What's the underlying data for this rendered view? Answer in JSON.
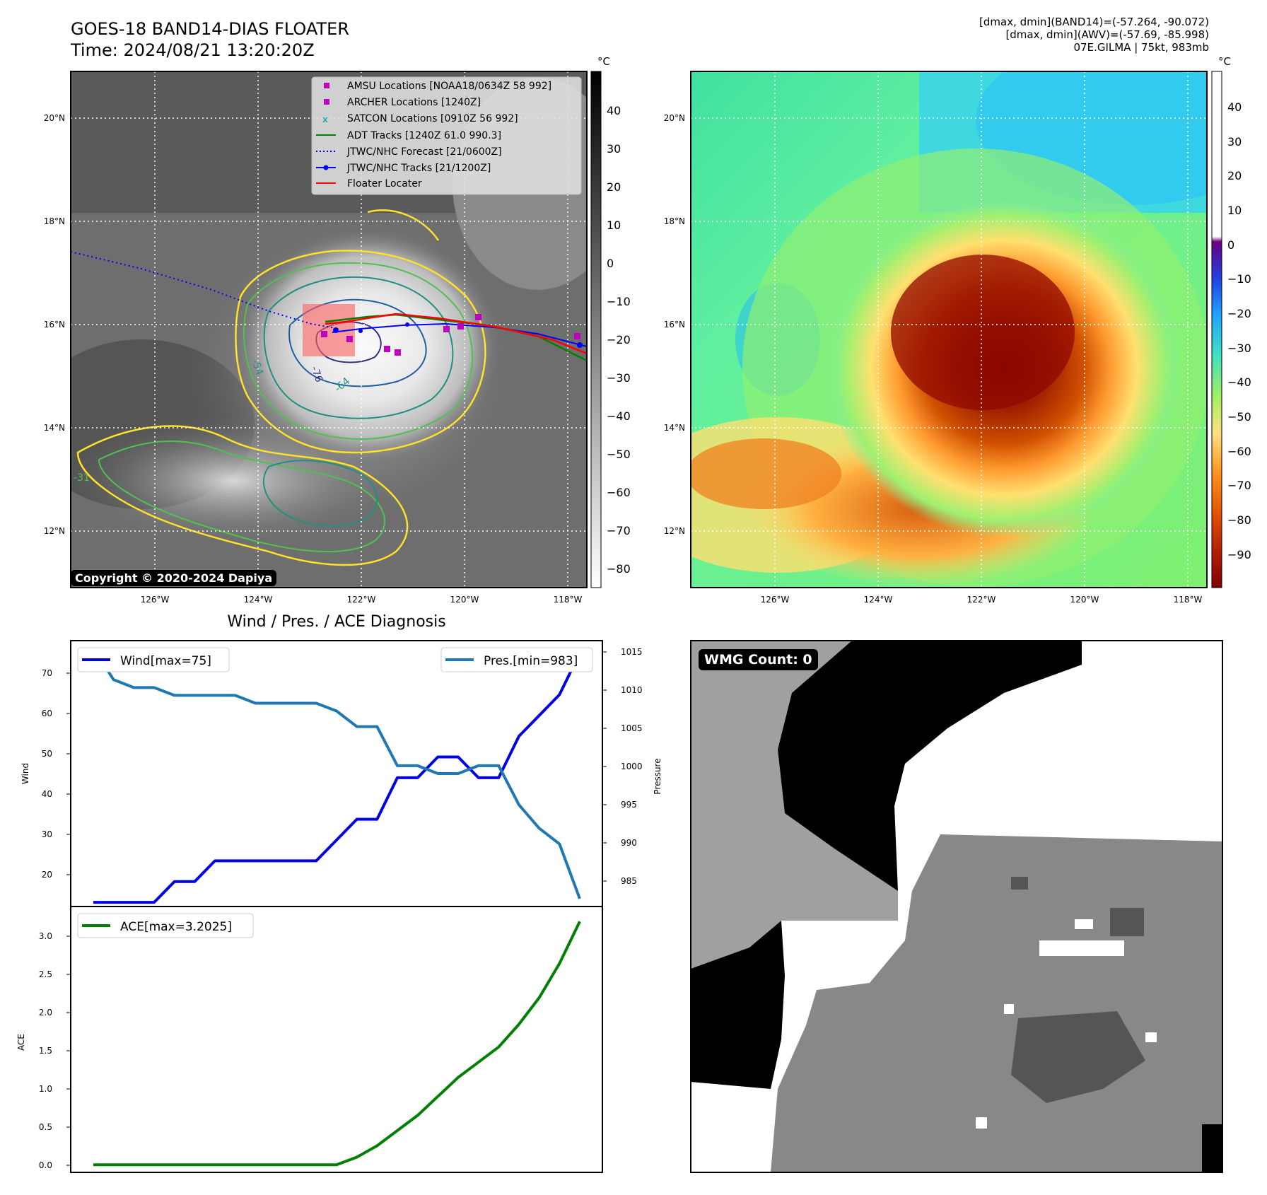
{
  "header": {
    "title_line1": "GOES-18 BAND14-DIAS FLOATER",
    "title_line2": "Time: 2024/08/21 13:20:20Z",
    "meta_line1": "[dmax, dmin](BAND14)=(-57.264, -90.072)",
    "meta_line2": "[dmax, dmin](AWV)=(-57.69, -85.998)",
    "meta_line3": "07E.GILMA | 75kt, 983mb"
  },
  "maps": {
    "lon_ticks": [
      "126°W",
      "124°W",
      "122°W",
      "120°W",
      "118°W"
    ],
    "lat_ticks": [
      "20°N",
      "18°N",
      "16°N",
      "14°N",
      "12°N"
    ],
    "copyright": "Copyright © 2020-2024 Dapiya",
    "contour_labels": [
      "-76",
      "-54",
      "-64",
      "-31"
    ]
  },
  "legend": {
    "items": [
      {
        "label": "AMSU Locations [NOAA18/0634Z 58 992]",
        "color": "#c000c0",
        "marker": "square"
      },
      {
        "label": "ARCHER Locations [1240Z]",
        "color": "#c000c0",
        "marker": "square"
      },
      {
        "label": "SATCON Locations [0910Z 56 992]",
        "color": "#20b0b0",
        "marker": "x"
      },
      {
        "label": "ADT Tracks [1240Z 61.0 990.3]",
        "color": "#008000",
        "marker": "line"
      },
      {
        "label": "JTWC/NHC Forecast [21/0600Z]",
        "color": "#0000ff",
        "marker": "dotted"
      },
      {
        "label": "JTWC/NHC Tracks [21/1200Z]",
        "color": "#0000ff",
        "marker": "line-dot"
      },
      {
        "label": "Floater Locater",
        "color": "#ff0000",
        "marker": "line"
      }
    ]
  },
  "colorbars": {
    "unit": "°C",
    "gray_ticks": [
      "40",
      "30",
      "20",
      "10",
      "0",
      "−10",
      "−20",
      "−30",
      "−40",
      "−50",
      "−60",
      "−70",
      "−80"
    ],
    "color_ticks": [
      "40",
      "30",
      "20",
      "10",
      "0",
      "−10",
      "−20",
      "−30",
      "−40",
      "−50",
      "−60",
      "−70",
      "−80",
      "−90"
    ]
  },
  "diagnosis": {
    "title": "Wind / Pres. / ACE Diagnosis",
    "wind_ylabel": "Wind",
    "pres_ylabel": "Pressure",
    "ace_ylabel": "ACE",
    "wind_legend": "Wind[max=75]",
    "pres_legend": "Pres.[min=983]",
    "ace_legend": "ACE[max=3.2025]",
    "wind_ticks": [
      "70",
      "60",
      "50",
      "40",
      "30",
      "20"
    ],
    "pres_ticks": [
      "1015",
      "1010",
      "1005",
      "1000",
      "995",
      "990",
      "985"
    ],
    "ace_ticks": [
      "3.0",
      "2.5",
      "2.0",
      "1.5",
      "1.0",
      "0.5",
      "0.0"
    ],
    "wind_color": "#0000e0",
    "pres_color": "#1f77b4",
    "ace_color": "#008000"
  },
  "chart_data": [
    {
      "type": "line",
      "ylim": [
        14,
        78
      ],
      "series": [
        {
          "name": "Wind[max=75]",
          "values": [
            15,
            15,
            15,
            15,
            20,
            20,
            25,
            25,
            25,
            25,
            25,
            25,
            30,
            35,
            35,
            45,
            45,
            50,
            50,
            45,
            45,
            55,
            60,
            65,
            75
          ]
        }
      ]
    },
    {
      "type": "line",
      "ylim": [
        982,
        1016
      ],
      "series": [
        {
          "name": "Pres.[min=983]",
          "values": [
            1015,
            1011,
            1010,
            1010,
            1009,
            1009,
            1009,
            1009,
            1008,
            1008,
            1008,
            1008,
            1007,
            1005,
            1005,
            1000,
            1000,
            999,
            999,
            1000,
            1000,
            995,
            992,
            990,
            983
          ]
        }
      ]
    },
    {
      "type": "line",
      "ylim": [
        -0.1,
        3.4
      ],
      "series": [
        {
          "name": "ACE[max=3.2025]",
          "values": [
            0,
            0,
            0,
            0,
            0,
            0,
            0,
            0,
            0,
            0,
            0,
            0,
            0,
            0.1,
            0.25,
            0.45,
            0.65,
            0.9,
            1.15,
            1.35,
            1.55,
            1.85,
            2.2,
            2.65,
            3.2025
          ]
        }
      ]
    }
  ],
  "wmg": {
    "label": "WMG Count: 0"
  }
}
